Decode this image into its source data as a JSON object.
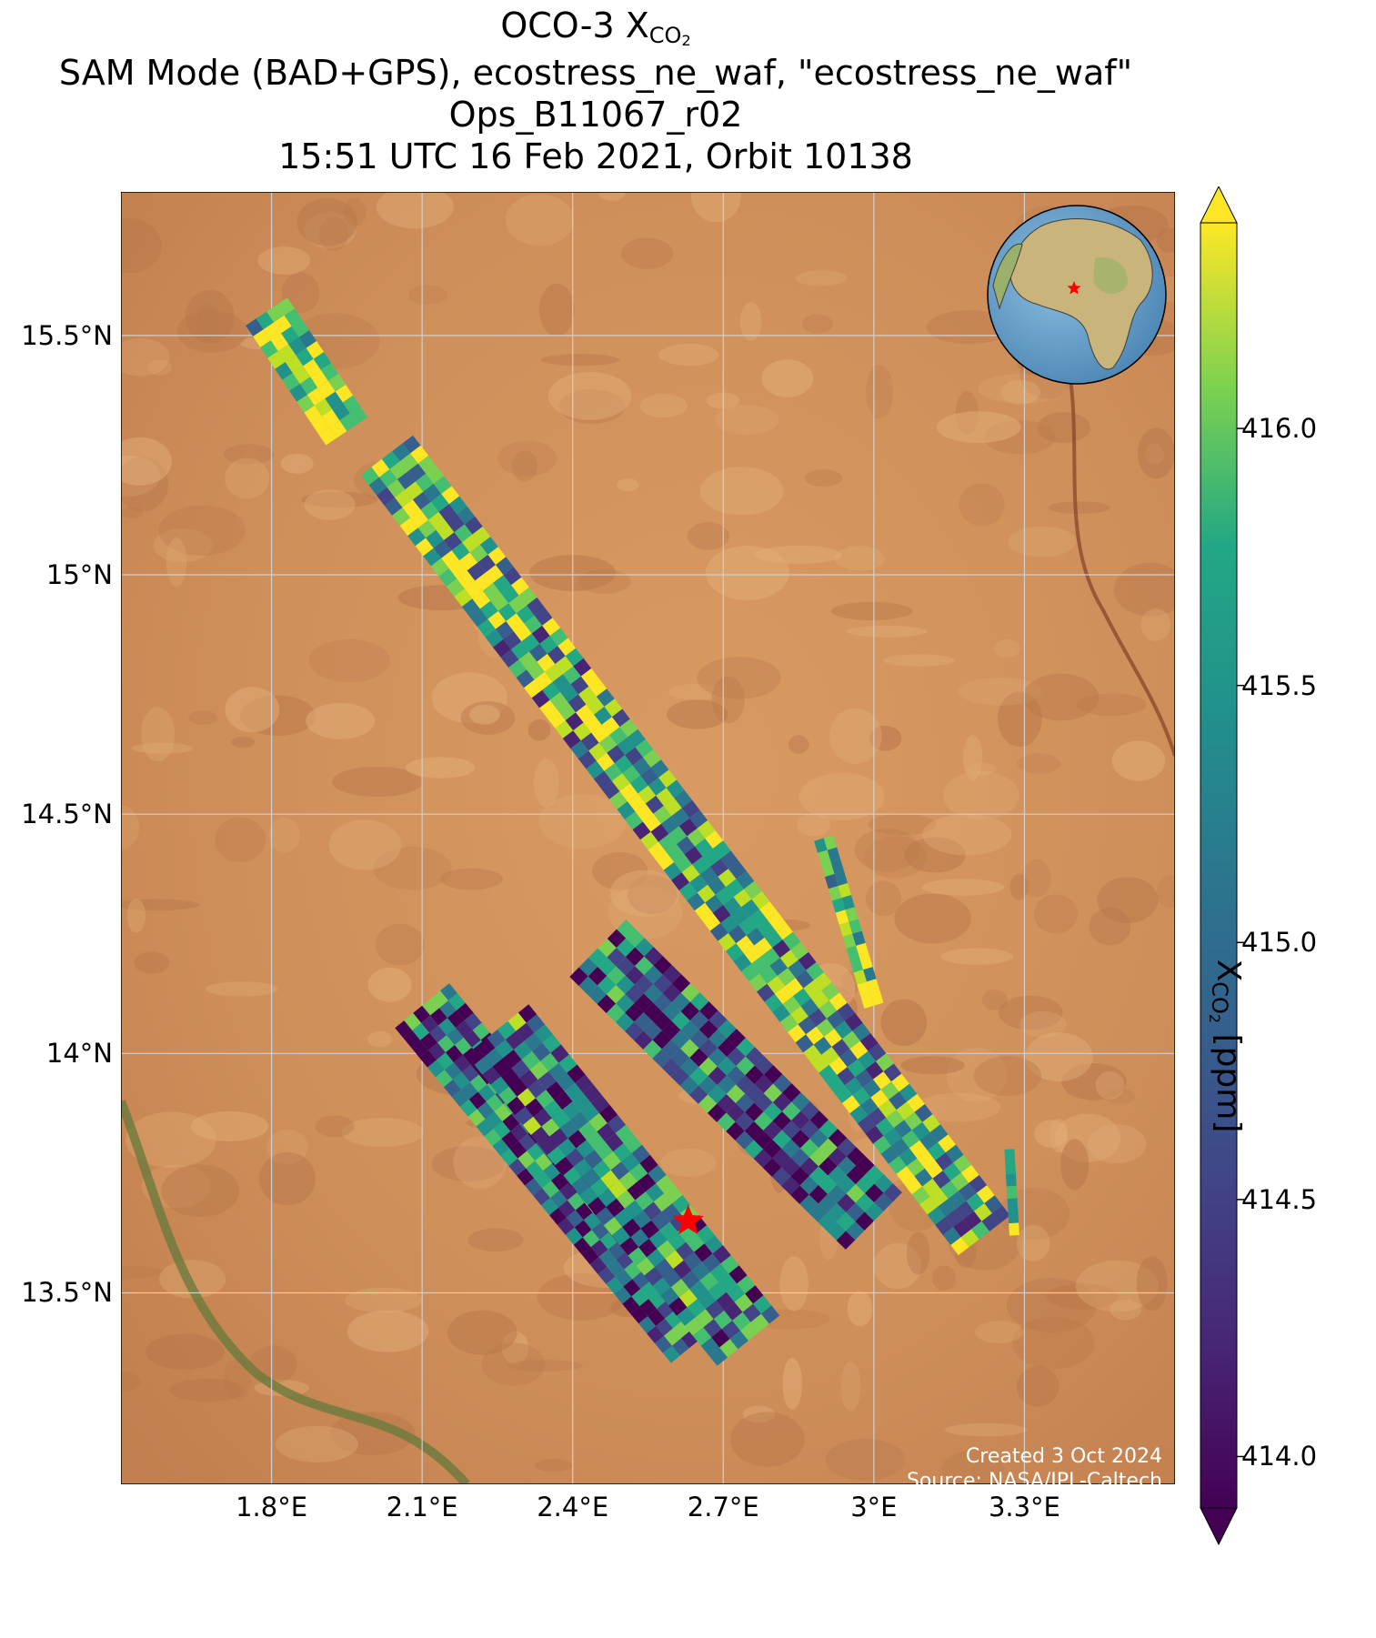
{
  "title": {
    "line1_prefix": "OCO-3 X",
    "line1_sub": "CO",
    "line1_sub2": "2",
    "line2": "SAM Mode (BAD+GPS), ecostress_ne_waf, \"ecostress_ne_waf\"",
    "line3": "Ops_B11067_r02",
    "line4": "15:51 UTC 16 Feb 2021, Orbit 10138"
  },
  "axes": {
    "y_ticks": [
      "15.5°N",
      "15°N",
      "14.5°N",
      "14°N",
      "13.5°N"
    ],
    "x_ticks": [
      "1.8°E",
      "2.1°E",
      "2.4°E",
      "2.7°E",
      "3°E",
      "3.3°E"
    ],
    "lon_range": [
      1.5,
      3.6
    ],
    "lat_range": [
      13.1,
      15.8
    ],
    "grid": true
  },
  "colorbar": {
    "cmap": "viridis",
    "ticks": [
      "416.0",
      "415.5",
      "415.0",
      "414.5",
      "414.0"
    ],
    "range": [
      413.9,
      416.4
    ],
    "extend": "both",
    "label_prefix": "X",
    "label_sub": "CO",
    "label_sub2": "2",
    "label_suffix": " [ppm]"
  },
  "credit": {
    "line1": "Created 3 Oct 2024",
    "line2": "Source: NASA/JPL-Caltech"
  },
  "chart_data": {
    "type": "heatmap",
    "description_units": "XCO2 ppm",
    "target_marker": {
      "lon": 2.63,
      "lat": 13.65,
      "color": "#ff0000"
    },
    "swaths": [
      {
        "name": "swath-1",
        "start": [
          1.79,
          15.55
        ],
        "end": [
          1.95,
          15.3
        ],
        "width_deg": 0.1,
        "mean": 415.9
      },
      {
        "name": "swath-2",
        "start": [
          2.03,
          15.25
        ],
        "end": [
          3.22,
          13.62
        ],
        "width_deg": 0.13,
        "mean": 415.4
      },
      {
        "name": "swath-3",
        "start": [
          2.9,
          14.45
        ],
        "end": [
          3.0,
          14.1
        ],
        "width_deg": 0.04,
        "mean": 415.9
      },
      {
        "name": "swath-4",
        "start": [
          3.27,
          13.8
        ],
        "end": [
          3.28,
          13.62
        ],
        "width_deg": 0.02,
        "mean": 416.2
      },
      {
        "name": "swath-5",
        "start": [
          2.1,
          14.1
        ],
        "end": [
          2.65,
          13.4
        ],
        "width_deg": 0.14,
        "mean": 414.7
      },
      {
        "name": "swath-6",
        "start": [
          2.25,
          14.05
        ],
        "end": [
          2.75,
          13.4
        ],
        "width_deg": 0.16,
        "mean": 414.8
      },
      {
        "name": "swath-7",
        "start": [
          2.45,
          14.22
        ],
        "end": [
          3.0,
          13.65
        ],
        "width_deg": 0.16,
        "mean": 414.7
      }
    ]
  }
}
